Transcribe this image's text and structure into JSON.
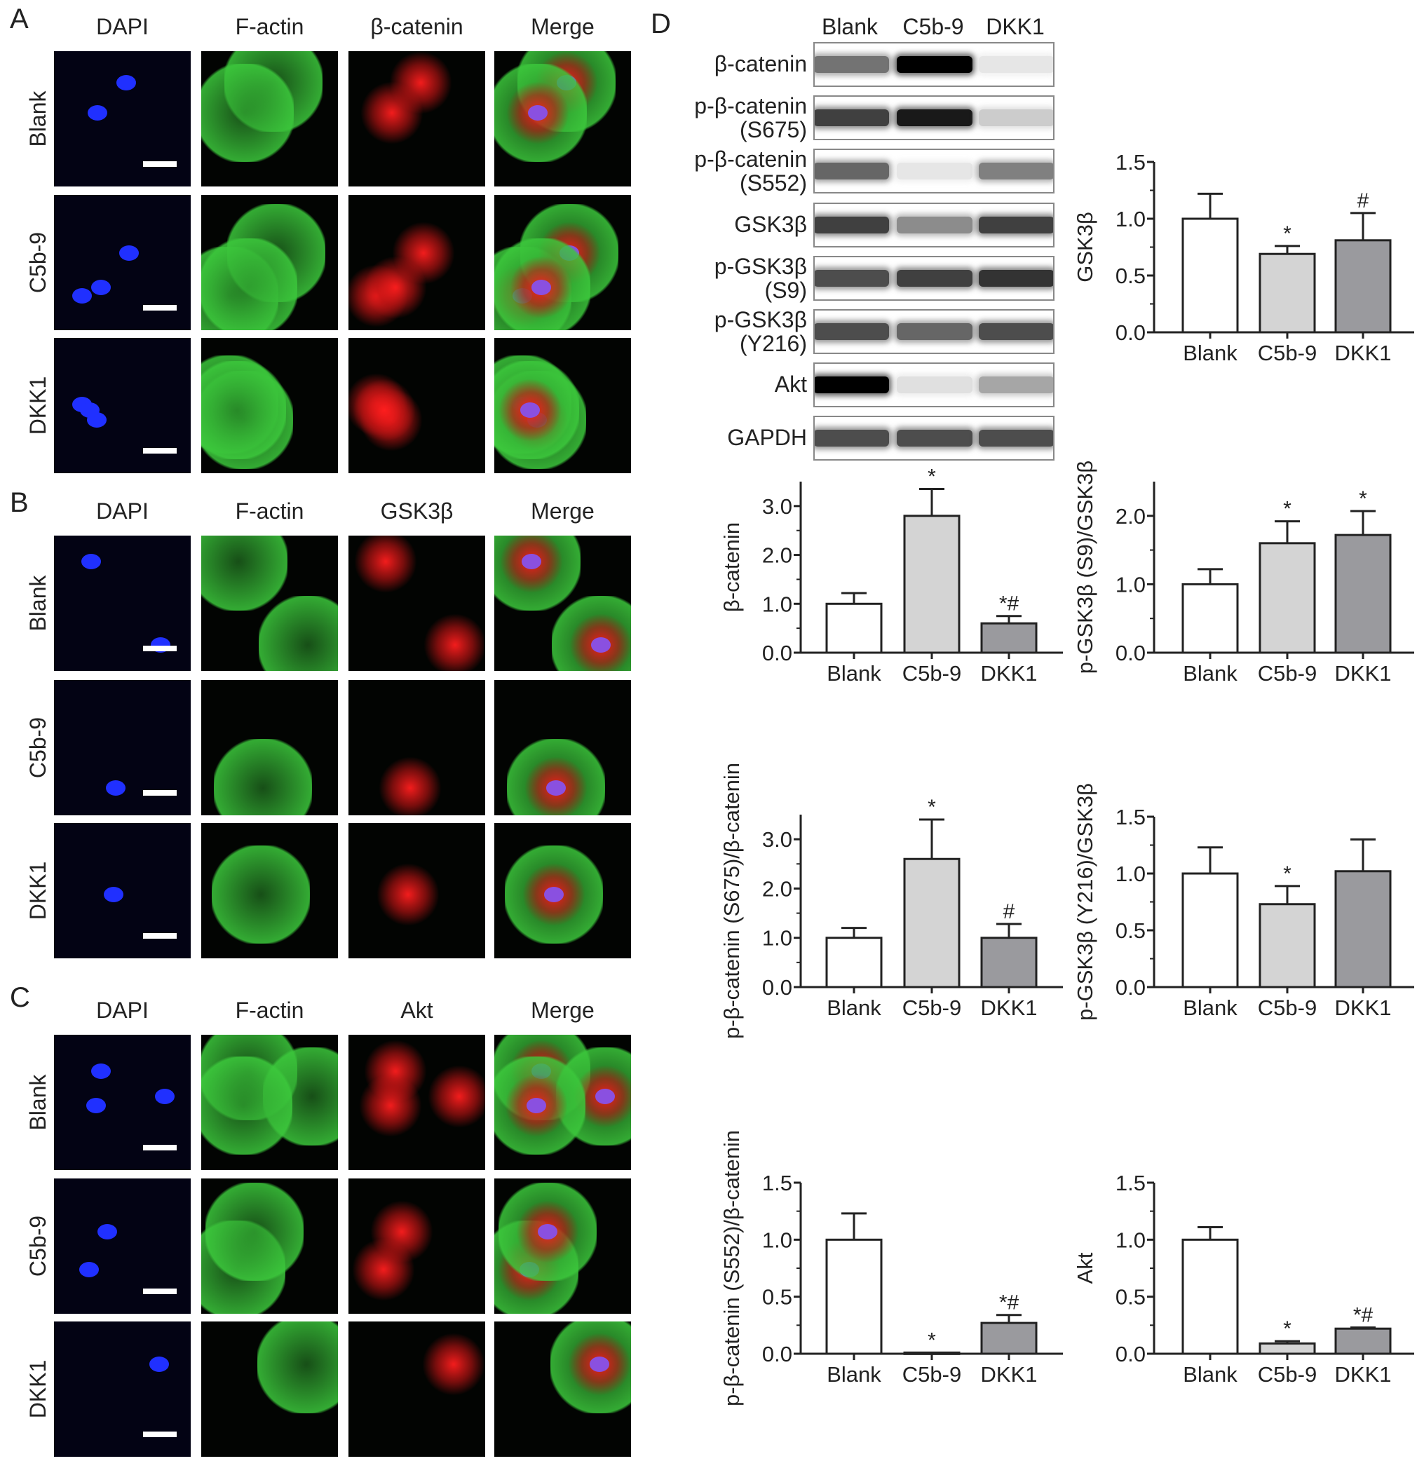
{
  "panels": {
    "A": {
      "label": "A",
      "columns": [
        "DAPI",
        "F-actin",
        "β-catenin",
        "Merge"
      ],
      "rows": [
        "Blank",
        "C5b-9",
        "DKK1"
      ]
    },
    "B": {
      "label": "B",
      "columns": [
        "DAPI",
        "F-actin",
        "GSK3β",
        "Merge"
      ],
      "rows": [
        "Blank",
        "C5b-9",
        "DKK1"
      ]
    },
    "C": {
      "label": "C",
      "columns": [
        "DAPI",
        "F-actin",
        "Akt",
        "Merge"
      ],
      "rows": [
        "Blank",
        "C5b-9",
        "DKK1"
      ]
    },
    "D": {
      "label": "D"
    }
  },
  "blot": {
    "lanes": [
      "Blank",
      "C5b-9",
      "DKK1"
    ],
    "rows": [
      {
        "label": "β-catenin",
        "intensity": [
          0.55,
          1.0,
          0.1
        ]
      },
      {
        "label": "p-β-catenin\n(S675)",
        "intensity": [
          0.75,
          0.9,
          0.2
        ]
      },
      {
        "label": "p-β-catenin\n(S552)",
        "intensity": [
          0.6,
          0.1,
          0.5
        ]
      },
      {
        "label": "GSK3β",
        "intensity": [
          0.75,
          0.45,
          0.75
        ]
      },
      {
        "label": "p-GSK3β\n(S9)",
        "intensity": [
          0.7,
          0.75,
          0.8
        ]
      },
      {
        "label": "p-GSK3β\n(Y216)",
        "intensity": [
          0.7,
          0.6,
          0.7
        ]
      },
      {
        "label": "Akt",
        "intensity": [
          1.0,
          0.12,
          0.35
        ]
      },
      {
        "label": "GAPDH",
        "intensity": [
          0.7,
          0.7,
          0.7
        ]
      }
    ]
  },
  "colors": {
    "Blank": "#ffffff",
    "C5b-9": "#d4d4d4",
    "DKK1": "#9a9a9e",
    "axis": "#222222"
  },
  "chart_data": [
    {
      "type": "bar",
      "ylabel": "GSK3β",
      "categories": [
        "Blank",
        "C5b-9",
        "DKK1"
      ],
      "values": [
        1.0,
        0.69,
        0.81
      ],
      "errors": [
        0.22,
        0.07,
        0.24
      ],
      "annotations": [
        "",
        "*",
        "#"
      ],
      "ylim": [
        0,
        1.5
      ],
      "yticks": [
        "0.0",
        "0.5",
        "1.0",
        "1.5"
      ]
    },
    {
      "type": "bar",
      "ylabel": "β-catenin",
      "categories": [
        "Blank",
        "C5b-9",
        "DKK1"
      ],
      "values": [
        1.0,
        2.8,
        0.6
      ],
      "errors": [
        0.22,
        0.55,
        0.15
      ],
      "annotations": [
        "",
        "*",
        "*#"
      ],
      "ylim": [
        0,
        3.5
      ],
      "yticks": [
        "0.0",
        "1.0",
        "2.0",
        "3.0"
      ]
    },
    {
      "type": "bar",
      "ylabel": "p-GSK3β (S9)/GSK3β",
      "categories": [
        "Blank",
        "C5b-9",
        "DKK1"
      ],
      "values": [
        1.0,
        1.6,
        1.72
      ],
      "errors": [
        0.22,
        0.32,
        0.35
      ],
      "annotations": [
        "",
        "*",
        "*"
      ],
      "ylim": [
        0,
        2.5
      ],
      "yticks": [
        "0.0",
        "1.0",
        "2.0"
      ]
    },
    {
      "type": "bar",
      "ylabel": "p-β-catenin (S675)/β-catenin",
      "categories": [
        "Blank",
        "C5b-9",
        "DKK1"
      ],
      "values": [
        1.0,
        2.6,
        1.0
      ],
      "errors": [
        0.2,
        0.8,
        0.28
      ],
      "annotations": [
        "",
        "*",
        "#"
      ],
      "ylim": [
        0,
        3.5
      ],
      "yticks": [
        "0.0",
        "1.0",
        "2.0",
        "3.0"
      ]
    },
    {
      "type": "bar",
      "ylabel": "p-GSK3β (Y216)/GSK3β",
      "categories": [
        "Blank",
        "C5b-9",
        "DKK1"
      ],
      "values": [
        1.0,
        0.73,
        1.02
      ],
      "errors": [
        0.23,
        0.16,
        0.28
      ],
      "annotations": [
        "",
        "*",
        ""
      ],
      "ylim": [
        0,
        1.5
      ],
      "yticks": [
        "0.0",
        "0.5",
        "1.0",
        "1.5"
      ]
    },
    {
      "type": "bar",
      "ylabel": "p-β-catenin (S552)/β-catenin",
      "categories": [
        "Blank",
        "C5b-9",
        "DKK1"
      ],
      "values": [
        1.0,
        0.01,
        0.27
      ],
      "errors": [
        0.23,
        0.0,
        0.07
      ],
      "annotations": [
        "",
        "*",
        "*#"
      ],
      "ylim": [
        0,
        1.5
      ],
      "yticks": [
        "0.0",
        "0.5",
        "1.0",
        "1.5"
      ]
    },
    {
      "type": "bar",
      "ylabel": "Akt",
      "categories": [
        "Blank",
        "C5b-9",
        "DKK1"
      ],
      "values": [
        1.0,
        0.09,
        0.22
      ],
      "errors": [
        0.11,
        0.02,
        0.01
      ],
      "annotations": [
        "",
        "*",
        "*#"
      ],
      "ylim": [
        0,
        1.5
      ],
      "yticks": [
        "0.0",
        "0.5",
        "1.0",
        "1.5"
      ]
    }
  ]
}
